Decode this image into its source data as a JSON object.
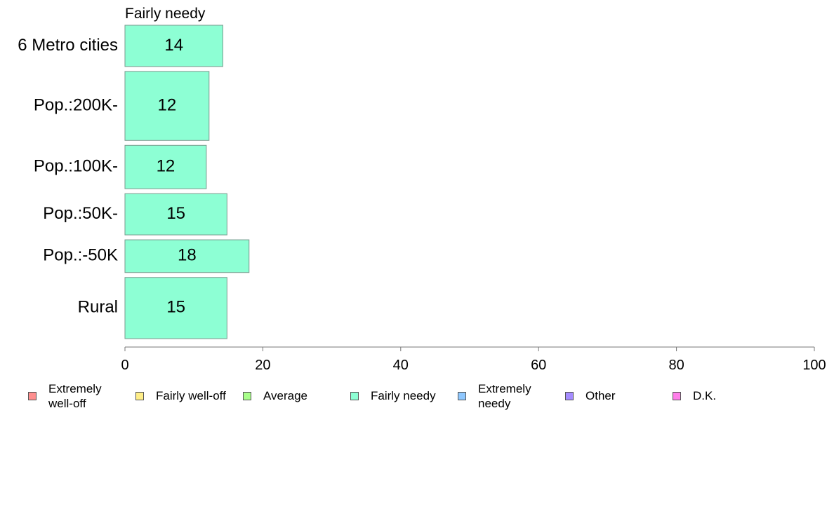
{
  "chart_data": {
    "type": "bar",
    "orientation": "horizontal",
    "title": "Fairly needy",
    "categories": [
      "6 Metro cities",
      "Pop.:200K-",
      "Pop.:100K-",
      "Pop.:50K-",
      "Pop.:-50K",
      "Rural"
    ],
    "values": [
      14,
      12,
      12,
      15,
      18,
      15
    ],
    "plotted_values": [
      14.2,
      12.2,
      11.8,
      14.8,
      18.0,
      14.8
    ],
    "relative_bar_heights": [
      0.58,
      0.97,
      0.61,
      0.58,
      0.46,
      0.86
    ],
    "xlim": [
      0,
      100
    ],
    "xticks": [
      0,
      20,
      40,
      60,
      80,
      100
    ],
    "xlabel": "",
    "ylabel": "",
    "grid": false,
    "bar_color": "#8dffd4",
    "legend_position": "bottom",
    "legend": [
      {
        "label": "Extremely\nwell-off",
        "color": "#ff8f8f"
      },
      {
        "label": "Fairly well-off",
        "color": "#ffee88"
      },
      {
        "label": "Average",
        "color": "#a8ff8a"
      },
      {
        "label": "Fairly needy",
        "color": "#8dffd4"
      },
      {
        "label": "Extremely\nneedy",
        "color": "#8fc8ff"
      },
      {
        "label": "Other",
        "color": "#a58cff"
      },
      {
        "label": "D.K.",
        "color": "#ff7fea"
      }
    ]
  }
}
